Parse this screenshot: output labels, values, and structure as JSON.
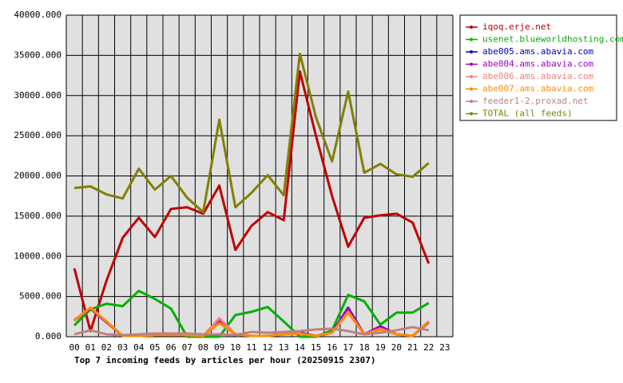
{
  "chart_data": {
    "type": "line",
    "title": "Top 7 incoming feeds by articles per hour (20250915 2307)",
    "categories": [
      "00",
      "01",
      "02",
      "03",
      "04",
      "05",
      "06",
      "07",
      "08",
      "09",
      "10",
      "11",
      "12",
      "13",
      "14",
      "15",
      "16",
      "17",
      "18",
      "19",
      "20",
      "21",
      "22",
      "23"
    ],
    "ylim": [
      0,
      40000
    ],
    "yticks": [
      {
        "value": 0,
        "label": "0.000"
      },
      {
        "value": 5000,
        "label": "5000.000"
      },
      {
        "value": 10000,
        "label": "10000.000"
      },
      {
        "value": 15000,
        "label": "15000.000"
      },
      {
        "value": 20000,
        "label": "20000.000"
      },
      {
        "value": 25000,
        "label": "25000.000"
      },
      {
        "value": 30000,
        "label": "30000.000"
      },
      {
        "value": 35000,
        "label": "35000.000"
      },
      {
        "value": 40000,
        "label": "40000.000"
      }
    ],
    "grid": true,
    "legend": "right",
    "series": [
      {
        "name": "iqoq.erje.net",
        "color": "#c00000",
        "values": [
          8500,
          700,
          7000,
          12300,
          14800,
          12400,
          15900,
          16100,
          15300,
          18800,
          10800,
          13800,
          15500,
          14500,
          33000,
          25000,
          17500,
          11200,
          14800,
          15100,
          15300,
          14200,
          9100,
          null
        ]
      },
      {
        "name": "usenet.blueworldhosting.com",
        "color": "#00b000",
        "values": [
          1400,
          3400,
          4100,
          3800,
          5700,
          4700,
          3500,
          0,
          0,
          0,
          2700,
          3100,
          3700,
          1900,
          0,
          0,
          800,
          5200,
          4400,
          1500,
          3000,
          3000,
          4200,
          null
        ]
      },
      {
        "name": "abe005.ams.abavia.com",
        "color": "#0000c0",
        "values": [
          2000,
          3500,
          1800,
          100,
          100,
          200,
          200,
          200,
          100,
          1800,
          300,
          100,
          100,
          300,
          500,
          100,
          500,
          3600,
          300,
          1200,
          300,
          100,
          1800,
          null
        ]
      },
      {
        "name": "abe004.ams.abavia.com",
        "color": "#a000c0",
        "values": [
          2000,
          3500,
          1800,
          100,
          100,
          200,
          200,
          200,
          100,
          1900,
          300,
          100,
          100,
          300,
          400,
          100,
          500,
          3500,
          300,
          1300,
          300,
          100,
          1800,
          null
        ]
      },
      {
        "name": "abe006.ams.abavia.com",
        "color": "#f08080",
        "values": [
          2100,
          3600,
          1900,
          100,
          100,
          200,
          200,
          200,
          100,
          2300,
          300,
          100,
          100,
          300,
          400,
          100,
          500,
          3100,
          300,
          1000,
          300,
          100,
          1900,
          null
        ]
      },
      {
        "name": "abe007.ams.abavia.com",
        "color": "#ff8c00",
        "values": [
          2000,
          3600,
          1900,
          100,
          100,
          200,
          200,
          200,
          100,
          1700,
          300,
          100,
          100,
          300,
          400,
          100,
          500,
          3000,
          300,
          900,
          300,
          100,
          1900,
          null
        ]
      },
      {
        "name": "feeder1-2.proxad.net",
        "color": "#c08080",
        "values": [
          300,
          800,
          300,
          200,
          300,
          400,
          400,
          400,
          300,
          300,
          200,
          600,
          500,
          600,
          700,
          900,
          1000,
          700,
          300,
          500,
          800,
          1200,
          800,
          null
        ]
      },
      {
        "name": "TOTAL (all feeds)",
        "color": "#808000",
        "values": [
          18500,
          18700,
          17700,
          17200,
          20900,
          18300,
          20000,
          17300,
          15500,
          27000,
          16100,
          17900,
          20100,
          17600,
          35200,
          27300,
          21800,
          30500,
          20400,
          21500,
          20200,
          19900,
          21600,
          null
        ]
      }
    ]
  }
}
